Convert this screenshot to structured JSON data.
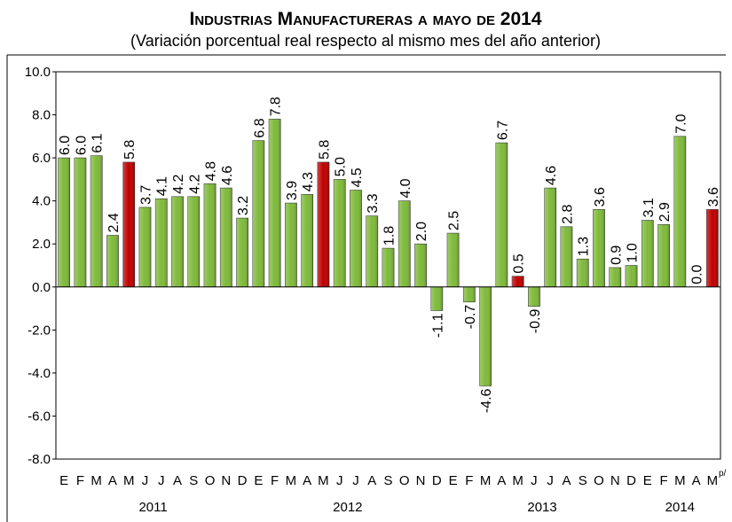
{
  "chart_data": {
    "type": "bar",
    "title": "Industrias Manufactureras a mayo de 2014",
    "subtitle": "(Variación porcentual real respecto al mismo mes del año anterior)",
    "categories": [
      "E",
      "F",
      "M",
      "A",
      "M",
      "J",
      "J",
      "A",
      "S",
      "O",
      "N",
      "D",
      "E",
      "F",
      "M",
      "A",
      "M",
      "J",
      "J",
      "A",
      "S",
      "O",
      "N",
      "D",
      "E",
      "F",
      "M",
      "A",
      "M",
      "J",
      "J",
      "A",
      "S",
      "O",
      "N",
      "D",
      "E",
      "F",
      "M",
      "A",
      "M"
    ],
    "category_note": "p/",
    "x_groups": [
      {
        "name": "2011",
        "size": 12
      },
      {
        "name": "2012",
        "size": 12
      },
      {
        "name": "2013",
        "size": 12
      },
      {
        "name": "2014",
        "size": 5
      }
    ],
    "values": [
      6.0,
      6.0,
      6.1,
      2.4,
      5.8,
      3.7,
      4.1,
      4.2,
      4.2,
      4.8,
      4.6,
      3.2,
      6.8,
      7.8,
      3.9,
      4.3,
      5.8,
      5.0,
      4.5,
      3.3,
      1.8,
      4.0,
      2.0,
      -1.1,
      2.5,
      -0.7,
      -4.6,
      6.7,
      0.5,
      -0.9,
      4.6,
      2.8,
      1.3,
      3.6,
      0.9,
      1.0,
      3.1,
      2.9,
      7.0,
      0.0,
      3.6
    ],
    "value_labels": [
      "6.0",
      "6.0",
      "6.1",
      "2.4",
      "5.8",
      "3.7",
      "4.1",
      "4.2",
      "4.2",
      "4.8",
      "4.6",
      "3.2",
      "6.8",
      "7.8",
      "3.9",
      "4.3",
      "5.8",
      "5.0",
      "4.5",
      "3.3",
      "1.8",
      "4.0",
      "2.0",
      "-1.1",
      "2.5",
      "-0.7",
      "-4.6",
      "6.7",
      "0.5",
      "-0.9",
      "4.6",
      "2.8",
      "1.3",
      "3.6",
      "0.9",
      "1.0",
      "3.1",
      "2.9",
      "7.0",
      "0.0",
      "3.6"
    ],
    "colors": [
      "#7fba3a",
      "#7fba3a",
      "#7fba3a",
      "#7fba3a",
      "#c00000",
      "#7fba3a",
      "#7fba3a",
      "#7fba3a",
      "#7fba3a",
      "#7fba3a",
      "#7fba3a",
      "#7fba3a",
      "#7fba3a",
      "#7fba3a",
      "#7fba3a",
      "#7fba3a",
      "#c00000",
      "#7fba3a",
      "#7fba3a",
      "#7fba3a",
      "#7fba3a",
      "#7fba3a",
      "#7fba3a",
      "#7fba3a",
      "#7fba3a",
      "#7fba3a",
      "#7fba3a",
      "#7fba3a",
      "#c00000",
      "#7fba3a",
      "#7fba3a",
      "#7fba3a",
      "#7fba3a",
      "#7fba3a",
      "#7fba3a",
      "#7fba3a",
      "#7fba3a",
      "#7fba3a",
      "#7fba3a",
      "#7fba3a",
      "#c00000"
    ],
    "ylim": [
      -8,
      10
    ],
    "yticks": [
      {
        "value": -8,
        "label": "-8.0"
      },
      {
        "value": -6,
        "label": "-6.0"
      },
      {
        "value": -4,
        "label": "-4.0"
      },
      {
        "value": -2,
        "label": "-2.0"
      },
      {
        "value": 0,
        "label": "0.0"
      },
      {
        "value": 2,
        "label": "2.0"
      },
      {
        "value": 4,
        "label": "4.0"
      },
      {
        "value": 6,
        "label": "6.0"
      },
      {
        "value": 8,
        "label": "8.0"
      },
      {
        "value": 10,
        "label": "10.0"
      }
    ],
    "grid": false
  }
}
